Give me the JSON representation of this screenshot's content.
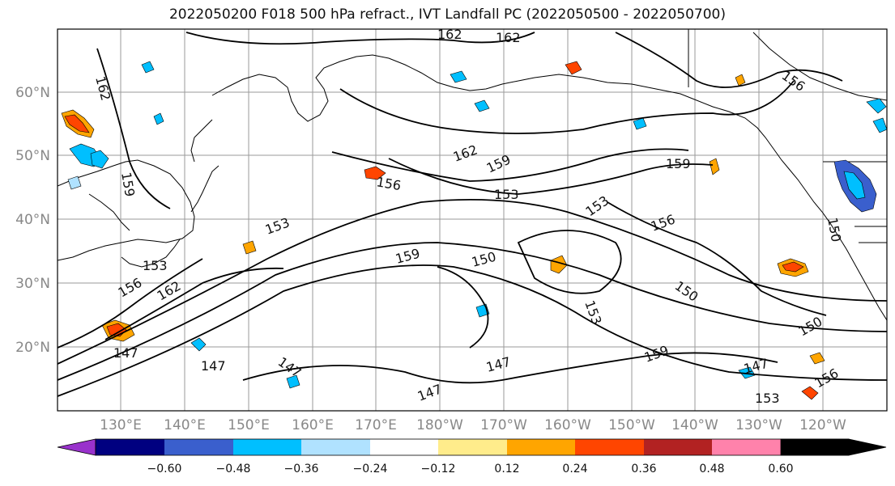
{
  "title": "2022050200 F018 500 hPa refract., IVT Landfall PC (2022050500 - 2022050700)",
  "lat_labels": [
    "60°N",
    "50°N",
    "40°N",
    "30°N",
    "20°N"
  ],
  "lon_labels": [
    "130°E",
    "140°E",
    "150°E",
    "160°E",
    "170°E",
    "180°W",
    "170°W",
    "160°W",
    "150°W",
    "140°W",
    "130°W",
    "120°W"
  ],
  "colorbar": {
    "ticks": [
      "−0.60",
      "−0.48",
      "−0.36",
      "−0.24",
      "−0.12",
      "0.12",
      "0.24",
      "0.36",
      "0.48",
      "0.60"
    ],
    "colors": [
      "#9932cc",
      "#000080",
      "#3a5fcd",
      "#00bfff",
      "#b0e2ff",
      "#ffffff",
      "#ffec8b",
      "#ffa500",
      "#ff4500",
      "#b22222",
      "#ff82ab"
    ]
  },
  "contour_labels": [
    {
      "text": "162"
    },
    {
      "text": "162"
    },
    {
      "text": "162"
    },
    {
      "text": "162"
    },
    {
      "text": "162"
    },
    {
      "text": "159"
    },
    {
      "text": "159"
    },
    {
      "text": "159"
    },
    {
      "text": "159"
    },
    {
      "text": "159"
    },
    {
      "text": "156"
    },
    {
      "text": "156"
    },
    {
      "text": "156"
    },
    {
      "text": "156"
    },
    {
      "text": "156"
    },
    {
      "text": "153"
    },
    {
      "text": "153"
    },
    {
      "text": "153"
    },
    {
      "text": "153"
    },
    {
      "text": "153"
    },
    {
      "text": "153"
    },
    {
      "text": "150"
    },
    {
      "text": "150"
    },
    {
      "text": "150"
    },
    {
      "text": "150"
    },
    {
      "text": "147"
    },
    {
      "text": "147"
    },
    {
      "text": "147"
    },
    {
      "text": "147"
    },
    {
      "text": "147"
    },
    {
      "text": "147"
    }
  ]
}
